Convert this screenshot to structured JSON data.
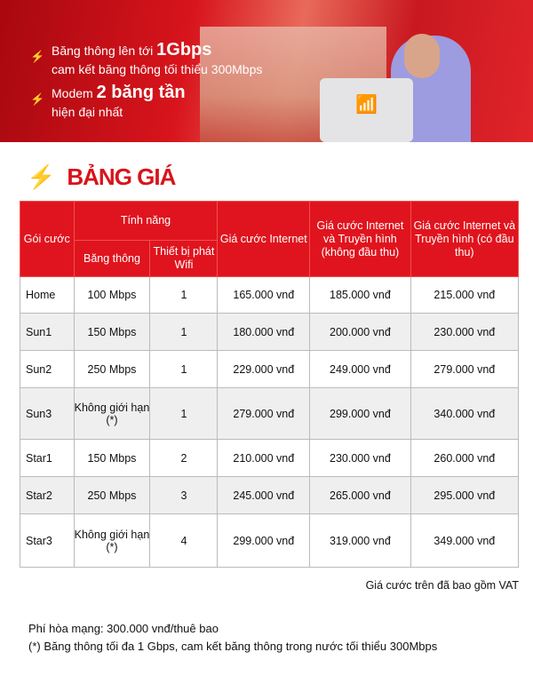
{
  "banner": {
    "line1a": "Băng thông lên tới ",
    "line1b": "1Gbps",
    "line2": "cam kết băng thông tối thiểu 300Mbps",
    "line3a": "Modem ",
    "line3b": "2 băng tần",
    "line4": "hiện đại nhất"
  },
  "title": "BẢNG GIÁ",
  "headers": {
    "package": "Gói cước",
    "features": "Tính năng",
    "bandwidth": "Băng thông",
    "wifi": "Thiết bị phát Wifi",
    "internet": "Giá cước Internet",
    "tv_no": "Giá cước Internet và Truyền hình (không đầu thu)",
    "tv_yes": "Giá cước Internet và Truyền hình (có đầu thu)"
  },
  "rows": [
    [
      "Home",
      "100 Mbps",
      "1",
      "165.000 vnđ",
      "185.000 vnđ",
      "215.000 vnđ"
    ],
    [
      "Sun1",
      "150 Mbps",
      "1",
      "180.000 vnđ",
      "200.000 vnđ",
      "230.000 vnđ"
    ],
    [
      "Sun2",
      "250 Mbps",
      "1",
      "229.000 vnđ",
      "249.000 vnđ",
      "279.000 vnđ"
    ],
    [
      "Sun3",
      "Không giới hạn (*)",
      "1",
      "279.000 vnđ",
      "299.000 vnđ",
      "340.000 vnđ"
    ],
    [
      "Star1",
      "150 Mbps",
      "2",
      "210.000 vnđ",
      "230.000 vnđ",
      "260.000 vnđ"
    ],
    [
      "Star2",
      "250 Mbps",
      "3",
      "245.000 vnđ",
      "265.000 vnđ",
      "295.000 vnđ"
    ],
    [
      "Star3",
      "Không giới hạn (*)",
      "4",
      "299.000 vnđ",
      "319.000 vnđ",
      "349.000 vnđ"
    ]
  ],
  "vat": "Giá cước trên đã bao gồm VAT",
  "fee": "Phí hòa mạng: 300.000 vnđ/thuê bao",
  "footnote": "(*) Băng thông tối đa 1 Gbps, cam kết băng thông trong nước tối thiểu 300Mbps",
  "colors": {
    "accent": "#e0141e"
  }
}
